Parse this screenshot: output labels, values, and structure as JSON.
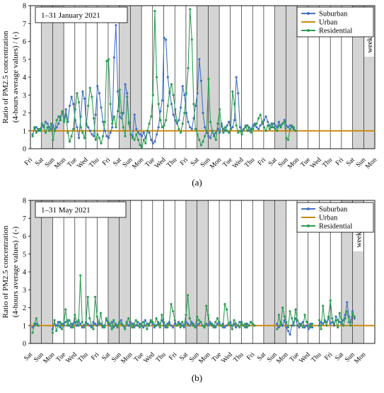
{
  "chart_data": [
    {
      "type": "line",
      "panel_label": "(a)",
      "period_label": "1–31 January 2021",
      "ylabel": "Ratio of PM2.5 concentration (4-hours average values) / (-)",
      "ylim": [
        0,
        8
      ],
      "yticks": [
        "0",
        "1",
        "2",
        "3",
        "4",
        "5",
        "6",
        "7",
        "8"
      ],
      "xlim": [
        0,
        31
      ],
      "x_tick_labels": [
        "Fri",
        "Sat",
        "Sun",
        "Mon",
        "Tue",
        "Wed",
        "Thu",
        "Fri",
        "Sat",
        "Sun",
        "Mon",
        "Tue",
        "Wed",
        "Thu",
        "Fri",
        "Sat",
        "Sun",
        "Mon",
        "Tue",
        "Wed",
        "Thu",
        "Fri",
        "Sat",
        "Sun",
        "Mon",
        "Tue",
        "Wed",
        "Thu",
        "Fri",
        "Sat",
        "Sun",
        "Mon"
      ],
      "weekend_label": "weekend",
      "weekend_days": [
        1,
        2,
        8,
        9,
        15,
        16,
        22,
        23,
        29,
        30
      ],
      "grid": "vertical day lines",
      "legend_position": "top-right",
      "series": [
        {
          "name": "Suburban",
          "color": "#4472C4",
          "values": [
            0.8,
            1.1,
            1.2,
            1.0,
            1.1,
            1.3,
            1.2,
            1.5,
            1.4,
            1.2,
            1.1,
            1.3,
            1.0,
            1.2,
            1.4,
            1.8,
            2.0,
            1.6,
            2.2,
            1.5,
            2.4,
            2.9,
            2.5,
            1.6,
            1.2,
            0.6,
            1.8,
            3.2,
            2.8,
            1.4,
            1.2,
            1.0,
            0.8,
            0.7,
            1.9,
            3.5,
            3.1,
            2.3,
            1.5,
            1.0,
            0.7,
            0.6,
            0.9,
            1.2,
            5.1,
            6.9,
            3.2,
            1.8,
            1.7,
            2.0,
            3.6,
            3.1,
            1.5,
            0.8,
            0.7,
            1.9,
            1.1,
            0.9,
            0.8,
            0.7,
            0.9,
            0.6,
            1.0,
            0.9,
            0.5,
            0.3,
            0.4,
            0.8,
            1.2,
            2.1,
            2.7,
            6.2,
            6.1,
            4.0,
            3.1,
            2.5,
            1.9,
            1.6,
            1.4,
            1.6,
            2.3,
            3.5,
            3.0,
            2.0,
            1.5,
            1.2,
            1.1,
            1.7,
            2.4,
            3.1,
            5.0,
            3.8,
            2.0,
            1.2,
            0.9,
            0.7,
            0.6,
            1.0,
            0.8,
            0.9,
            1.1,
            0.9,
            1.4,
            1.1,
            1.0,
            1.3,
            1.5,
            1.1,
            1.2,
            1.6,
            4.0,
            3.1,
            1.2,
            1.0,
            1.1,
            1.2,
            1.3,
            1.0,
            1.1,
            1.3,
            1.4,
            1.2,
            1.1,
            1.3,
            1.4,
            1.6,
            1.8,
            1.5,
            1.3,
            1.2,
            1.4,
            1.3,
            1.2,
            1.5,
            1.3,
            1.4,
            1.6,
            1.3,
            1.2,
            1.3,
            1.2,
            1.1
          ]
        },
        {
          "name": "Urban",
          "color": "#C98A12",
          "values": [
            1.0,
            1.0
          ]
        },
        {
          "name": "Residential",
          "color": "#2E9E55",
          "values": [
            0.7,
            1.2,
            0.9,
            1.1,
            1.0,
            1.4,
            1.3,
            0.9,
            1.2,
            1.0,
            1.4,
            0.5,
            1.1,
            1.6,
            1.8,
            1.6,
            2.1,
            1.5,
            1.9,
            0.9,
            0.4,
            0.7,
            1.1,
            2.2,
            3.1,
            2.6,
            1.2,
            0.9,
            0.6,
            1.3,
            2.4,
            3.4,
            2.9,
            1.7,
            0.5,
            0.8,
            0.6,
            0.3,
            0.7,
            1.5,
            4.9,
            5.0,
            2.5,
            1.4,
            1.8,
            1.2,
            2.1,
            3.3,
            2.0,
            1.2,
            0.7,
            2.9,
            1.4,
            0.8,
            0.6,
            0.5,
            0.8,
            0.5,
            0.2,
            0.1,
            0.5,
            0.3,
            1.0,
            1.4,
            1.8,
            3.0,
            7.7,
            4.0,
            2.5,
            1.6,
            1.2,
            1.3,
            1.6,
            2.4,
            3.2,
            3.6,
            3.0,
            2.2,
            1.5,
            1.1,
            0.9,
            1.4,
            2.0,
            3.1,
            4.5,
            7.8,
            6.1,
            2.5,
            1.1,
            0.8,
            0.5,
            0.2,
            0.4,
            0.7,
            1.0,
            3.9,
            1.5,
            1.0,
            0.7,
            0.5,
            1.4,
            2.2,
            1.3,
            0.9,
            1.2,
            1.0,
            0.9,
            1.1,
            3.2,
            2.5,
            1.3,
            0.9,
            1.0,
            0.8,
            1.1,
            1.3,
            1.0,
            1.2,
            0.9,
            1.1,
            1.3,
            1.4,
            1.7,
            1.9,
            1.5,
            1.2,
            1.0,
            1.3,
            1.1,
            1.4,
            1.2,
            1.1,
            1.0,
            1.3,
            1.2,
            1.4,
            1.5,
            0.6,
            0.5,
            1.1,
            1.3,
            1.2,
            1.0
          ]
        }
      ]
    },
    {
      "type": "line",
      "panel_label": "(b)",
      "period_label": "1–31 May 2021",
      "ylabel": "Ratio of PM2.5 concentration (4-hours average values) / (-)",
      "ylim": [
        0,
        8
      ],
      "yticks": [
        "0",
        "1",
        "2",
        "3",
        "4",
        "5",
        "6",
        "7",
        "8"
      ],
      "xlim": [
        0,
        31
      ],
      "x_tick_labels": [
        "Sat",
        "Sun",
        "Mon",
        "Tue",
        "Wed",
        "Thu",
        "Fri",
        "Sat",
        "Sun",
        "Mon",
        "Tue",
        "Wed",
        "Thu",
        "Fri",
        "Sat",
        "Sun",
        "Mon",
        "Tue",
        "Wed",
        "Thu",
        "Fri",
        "Sat",
        "Sun",
        "Mon",
        "Tue",
        "Wed",
        "Thu",
        "Fri",
        "Sat",
        "Sun",
        "Mon"
      ],
      "weekend_label": "weekend",
      "weekend_days": [
        0,
        1,
        7,
        8,
        14,
        15,
        21,
        22,
        28,
        29
      ],
      "grid": "vertical day lines",
      "legend_position": "top-right",
      "series": [
        {
          "name": "Suburban",
          "color": "#4472C4",
          "segments": [
            {
              "start": 0.2,
              "values": [
                0.9,
                1.0,
                1.1,
                1.0
              ]
            },
            {
              "start": 2.0,
              "values": [
                0.8,
                1.1,
                1.0,
                1.2,
                0.9,
                1.1,
                1.0,
                1.2,
                1.3,
                1.0,
                0.9,
                1.1,
                1.2,
                1.0,
                1.3,
                1.1,
                0.9,
                1.0,
                1.2,
                1.1,
                1.0,
                0.9,
                1.2,
                1.1,
                1.0,
                1.2,
                1.1,
                0.9,
                1.0,
                1.3,
                1.1,
                1.0,
                1.2,
                0.9,
                1.1,
                1.0,
                1.2,
                1.3,
                1.0,
                0.9,
                1.1,
                1.0,
                1.2,
                1.1,
                0.9,
                1.0,
                1.2,
                1.1,
                1.0,
                0.9,
                1.3,
                1.1,
                1.0,
                1.2,
                1.1,
                0.9,
                1.0,
                1.2,
                1.1,
                1.3,
                1.0,
                0.9,
                1.1,
                1.2,
                1.0,
                0.9,
                1.1,
                1.0,
                1.2,
                1.1,
                1.0,
                0.9,
                1.2,
                1.1,
                1.0,
                1.2,
                1.1,
                0.9,
                1.0,
                1.1,
                1.2,
                1.0,
                0.9,
                1.1,
                1.0,
                1.2,
                1.1,
                1.0,
                0.9,
                1.1,
                1.2,
                1.0,
                1.1,
                0.9,
                1.0,
                1.1,
                1.2,
                1.0,
                1.1,
                0.9,
                1.0,
                1.2,
                1.1,
                1.0,
                0.9,
                1.1,
                1.0,
                1.2,
                1.1,
                1.0
              ]
            },
            {
              "start": 22.2,
              "values": [
                1.1,
                0.9,
                1.2,
                1.0,
                1.3,
                0.9,
                0.7,
                0.5,
                1.0,
                1.2,
                1.4,
                1.0,
                0.9,
                1.1,
                1.2,
                0.9,
                1.0,
                0.8,
                1.1,
                0.9
              ]
            },
            {
              "start": 26.0,
              "values": [
                1.0,
                1.2,
                1.1,
                1.3,
                1.2,
                1.4,
                1.1,
                1.2,
                1.0,
                1.5,
                1.3,
                1.2,
                1.1,
                1.3,
                1.6,
                2.3,
                1.5,
                1.2,
                1.8,
                1.4
              ]
            }
          ]
        },
        {
          "name": "Urban",
          "color": "#C98A12",
          "values": [
            1.0,
            1.0
          ]
        },
        {
          "name": "Residential",
          "color": "#2E9E55",
          "segments": [
            {
              "start": 0.2,
              "values": [
                0.6,
                1.1,
                1.4,
                1.0
              ]
            },
            {
              "start": 2.0,
              "values": [
                0.6,
                1.3,
                0.7,
                1.0,
                1.2,
                0.8,
                1.1,
                1.9,
                1.0,
                1.3,
                1.1,
                0.9,
                1.6,
                1.2,
                1.0,
                3.8,
                1.2,
                0.9,
                1.1,
                2.6,
                1.4,
                1.0,
                0.8,
                2.6,
                1.5,
                1.1,
                1.7,
                1.0,
                0.9,
                1.4,
                1.2,
                1.1,
                0.8,
                1.3,
                1.0,
                0.9,
                1.2,
                1.1,
                1.0,
                0.8,
                1.2,
                1.4,
                1.0,
                0.9,
                1.1,
                1.3,
                1.0,
                0.9,
                1.1,
                1.2,
                1.0,
                0.8,
                1.1,
                1.3,
                1.2,
                1.0,
                1.4,
                1.1,
                0.9,
                1.6,
                1.2,
                1.0,
                0.9,
                1.1,
                2.2,
                1.8,
                1.3,
                1.0,
                1.1,
                0.9,
                1.2,
                1.0,
                1.6,
                2.7,
                1.4,
                1.1,
                1.0,
                0.9,
                1.5,
                1.3,
                1.2,
                1.0,
                0.9,
                2.1,
                1.6,
                1.1,
                1.0,
                0.9,
                1.2,
                1.4,
                1.1,
                1.0,
                0.9,
                2.2,
                1.9,
                1.1,
                1.0,
                0.8,
                1.3,
                1.1,
                1.0,
                0.9,
                1.2,
                1.0,
                1.1,
                0.9,
                1.0,
                1.2,
                1.1,
                1.0
              ]
            },
            {
              "start": 22.2,
              "values": [
                0.8,
                1.6,
                1.0,
                2.0,
                1.5,
                1.2,
                0.9,
                1.8,
                1.4,
                1.0,
                1.9,
                1.3,
                1.1,
                1.0,
                0.9,
                1.6,
                1.2,
                1.0,
                0.9,
                1.1
              ]
            },
            {
              "start": 26.0,
              "values": [
                1.3,
                0.8,
                2.1,
                1.2,
                1.0,
                1.5,
                2.4,
                1.4,
                1.1,
                1.3,
                0.9,
                1.7,
                1.2,
                1.0,
                1.4,
                1.8,
                1.2,
                1.0,
                1.7,
                1.5
              ]
            }
          ]
        }
      ]
    }
  ]
}
